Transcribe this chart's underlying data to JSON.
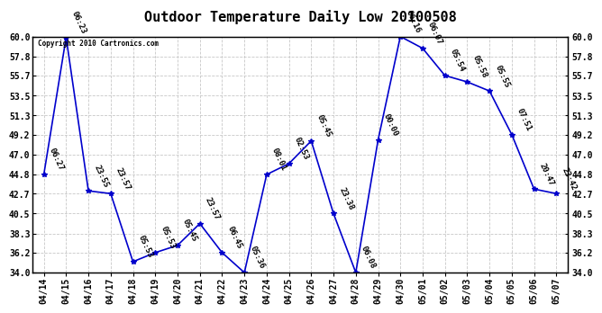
{
  "title": "Outdoor Temperature Daily Low 20100508",
  "copyright": "Copyright 2010 Cartronics.com",
  "dates": [
    "04/14",
    "04/15",
    "04/16",
    "04/17",
    "04/18",
    "04/19",
    "04/20",
    "04/21",
    "04/22",
    "04/23",
    "04/24",
    "04/25",
    "04/26",
    "04/27",
    "04/28",
    "04/29",
    "04/30",
    "05/01",
    "05/02",
    "05/03",
    "05/04",
    "05/05",
    "05/06",
    "05/07"
  ],
  "values": [
    44.8,
    59.9,
    43.0,
    42.7,
    35.2,
    36.2,
    37.0,
    39.4,
    36.2,
    34.0,
    44.8,
    46.0,
    48.5,
    40.5,
    34.0,
    48.6,
    60.0,
    58.7,
    55.7,
    55.0,
    54.0,
    49.2,
    43.2,
    42.7
  ],
  "time_labels": [
    "06:27",
    "06:23",
    "23:55",
    "23:57",
    "05:53",
    "05:53",
    "05:45",
    "23:57",
    "06:45",
    "05:36",
    "08:01",
    "02:53",
    "05:45",
    "23:38",
    "06:08",
    "00:00",
    "06:16",
    "06:07",
    "05:54",
    "05:58",
    "05:55",
    "07:51",
    "20:47",
    "23:42"
  ],
  "ylim": [
    34.0,
    60.0
  ],
  "yticks": [
    34.0,
    36.2,
    38.3,
    40.5,
    42.7,
    44.8,
    47.0,
    49.2,
    51.3,
    53.5,
    55.7,
    57.8,
    60.0
  ],
  "line_color": "#0000cc",
  "marker": "*",
  "background_color": "#ffffff",
  "grid_color": "#c8c8c8",
  "title_fontsize": 11,
  "tick_fontsize": 7,
  "label_fontsize": 6.5
}
